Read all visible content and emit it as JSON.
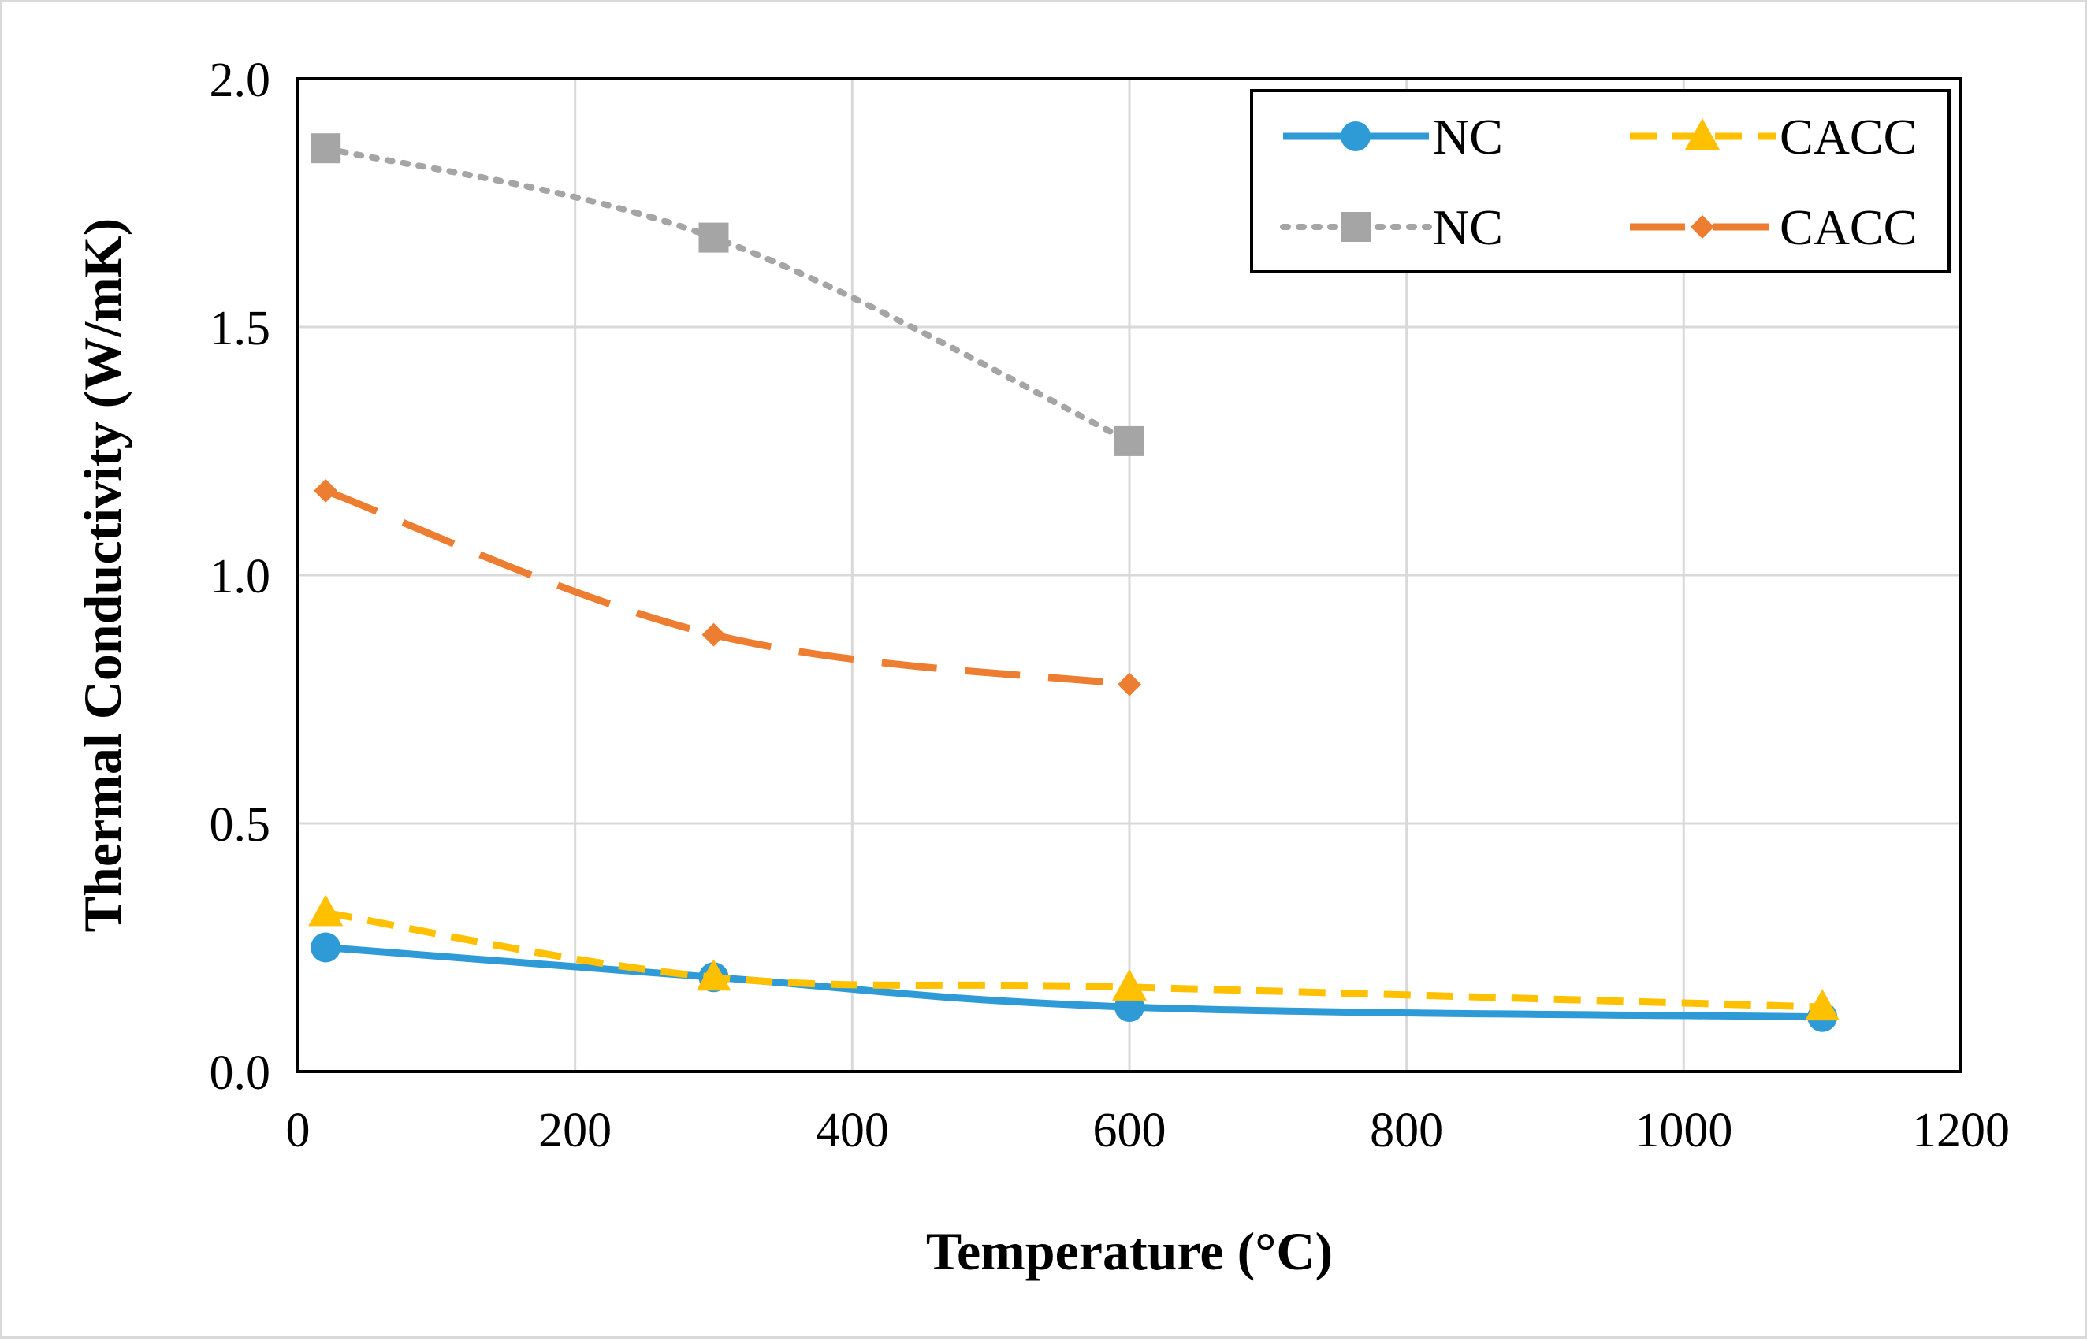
{
  "chart_data": {
    "type": "line",
    "title": "",
    "xlabel": "Temperature (°C)",
    "ylabel": "Thermal Conductivity (W/mK)",
    "xlim": [
      0,
      1200
    ],
    "ylim": [
      0,
      2.0
    ],
    "xticks": [
      "0",
      "200",
      "400",
      "600",
      "800",
      "1000",
      "1200"
    ],
    "yticks": [
      "0.0",
      "0.5",
      "1.0",
      "1.5",
      "2.0"
    ],
    "grid": true,
    "legend_position": "top-right",
    "series": [
      {
        "name": "NC",
        "x": [
          20,
          300,
          600,
          1100
        ],
        "y": [
          0.25,
          0.19,
          0.13,
          0.11
        ],
        "color": "#2e9bd6",
        "line": "solid",
        "marker": "circle"
      },
      {
        "name": "CACC",
        "x": [
          20,
          300,
          600,
          1100
        ],
        "y": [
          0.32,
          0.19,
          0.17,
          0.13
        ],
        "color": "#ffc000",
        "line": "dashed",
        "marker": "triangle"
      },
      {
        "name": "NC",
        "x": [
          20,
          300,
          600
        ],
        "y": [
          1.86,
          1.68,
          1.27
        ],
        "color": "#a5a5a5",
        "line": "dotted",
        "marker": "square"
      },
      {
        "name": "CACC",
        "x": [
          20,
          300,
          600
        ],
        "y": [
          1.17,
          0.88,
          0.78
        ],
        "color": "#ed7d31",
        "line": "longdash",
        "marker": "diamond"
      }
    ]
  }
}
